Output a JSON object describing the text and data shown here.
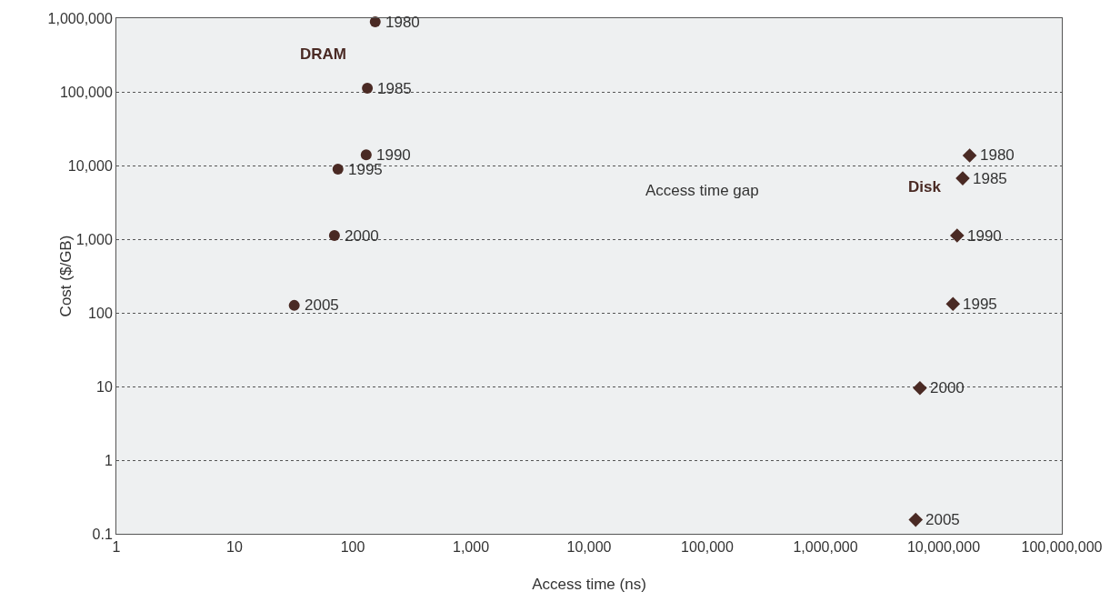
{
  "chart_data": {
    "type": "scatter",
    "xlabel": "Access time (ns)",
    "ylabel": "Cost ($/GB)",
    "log": "xy",
    "grid": "y",
    "legend": false,
    "xlim": [
      1,
      100000000
    ],
    "ylim": [
      0.1,
      1000000
    ],
    "xticks": [
      1,
      10,
      100,
      {
        "value": 1000,
        "label": "1,000"
      },
      {
        "value": 10000,
        "label": "10,000"
      },
      {
        "value": 100000,
        "label": "100,000"
      },
      {
        "value": 1000000,
        "label": "1,000,000"
      },
      {
        "value": 10000000,
        "label": "10,000,000"
      },
      {
        "value": 100000000,
        "label": "100,000,000"
      }
    ],
    "yticks": [
      0.1,
      1,
      10,
      100,
      {
        "value": 1000,
        "label": "1,000"
      },
      {
        "value": 10000,
        "label": "10,000"
      },
      {
        "value": 100000,
        "label": "100,000"
      },
      {
        "value": 1000000,
        "label": "1,000,000"
      }
    ],
    "series": [
      {
        "name": "DRAM",
        "color": "#4a2a24",
        "marker": "circle",
        "x": [
          155,
          133,
          130,
          75,
          70,
          32
        ],
        "values": [
          890000,
          112000,
          14000,
          8900,
          1120,
          126
        ]
      },
      {
        "name": "Disk",
        "color": "#4a2a24",
        "marker": "diamond",
        "x": [
          16600000,
          14500000,
          13000000,
          12000000,
          6300000,
          5800000
        ],
        "values": [
          13700,
          6700,
          1120,
          132,
          9.5,
          0.155
        ]
      }
    ],
    "annotations": [
      {
        "text": "1980",
        "x": 155,
        "y": 890000
      },
      {
        "text": "1985",
        "x": 133,
        "y": 112000
      },
      {
        "text": "1990",
        "x": 130,
        "y": 14000
      },
      {
        "text": "1995",
        "x": 75,
        "y": 8900
      },
      {
        "text": "2000",
        "x": 70,
        "y": 1120
      },
      {
        "text": "2005",
        "x": 32,
        "y": 126
      },
      {
        "text": "1980",
        "x": 16600000,
        "y": 13700
      },
      {
        "text": "1985",
        "x": 14500000,
        "y": 6700
      },
      {
        "text": "1990",
        "x": 13000000,
        "y": 1120
      },
      {
        "text": "1995",
        "x": 12000000,
        "y": 132
      },
      {
        "text": "2000",
        "x": 6300000,
        "y": 9.5
      },
      {
        "text": "2005",
        "x": 5800000,
        "y": 0.155
      },
      "Access time gap"
    ]
  }
}
